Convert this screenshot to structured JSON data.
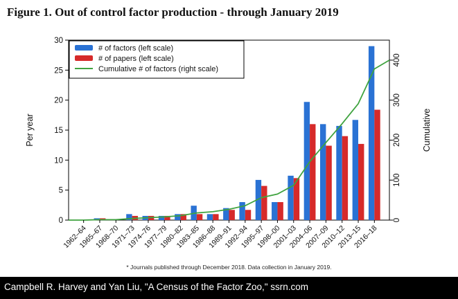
{
  "figure": {
    "title": "Figure 1. Out of control factor production - through January 2019",
    "footnote": "* Journals published through December 2018. Data collection in January 2019.",
    "caption": "Campbell R. Harvey and Yan Liu, \"A Census of the Factor Zoo,\" ssrn.com"
  },
  "colors": {
    "factors": "#2a72d4",
    "papers": "#d62a2a",
    "cumulative": "#3fa33f"
  },
  "chart_data": {
    "type": "bar",
    "categories": [
      "1962–64",
      "1965–67",
      "1968–70",
      "1971–73",
      "1974–76",
      "1977–79",
      "1980–82",
      "1983–85",
      "1986–88",
      "1989–91",
      "1992–94",
      "1995–97",
      "1998–00",
      "2001–03",
      "2004–06",
      "2007–09",
      "2010–12",
      "2013–15",
      "2016–18"
    ],
    "series": [
      {
        "name": "# of factors (left scale)",
        "axis": "left",
        "type": "bar",
        "color": "#2a72d4",
        "values": [
          0,
          0.3,
          0,
          1,
          0.7,
          0.7,
          1,
          2.4,
          1,
          2,
          3,
          6.7,
          3,
          7.4,
          19.7,
          16,
          15.7,
          16.7,
          29
        ]
      },
      {
        "name": "# of papers (left scale)",
        "axis": "left",
        "type": "bar",
        "color": "#d62a2a",
        "values": [
          0,
          0.3,
          0,
          0.7,
          0.7,
          0.7,
          1,
          1,
          1,
          1.7,
          1.7,
          5.7,
          3,
          7,
          16,
          12.4,
          14,
          12.7,
          18.4
        ]
      },
      {
        "name": "Cumulative # of factors (right scale)",
        "axis": "right",
        "type": "line",
        "color": "#3fa33f",
        "values": [
          0,
          1,
          1,
          4,
          6,
          8,
          11,
          18,
          21,
          27,
          36,
          56,
          65,
          87,
          146,
          194,
          241,
          291,
          378
        ]
      }
    ],
    "ylabel": "Per year",
    "y2label": "Cumulative",
    "ylim": [
      0,
      30
    ],
    "yticks": [
      0,
      5,
      10,
      15,
      20,
      25,
      30
    ],
    "y2lim": [
      0,
      450
    ],
    "y2ticks": [
      0,
      100,
      200,
      300,
      400
    ],
    "legend": "top-left",
    "grid": false
  }
}
